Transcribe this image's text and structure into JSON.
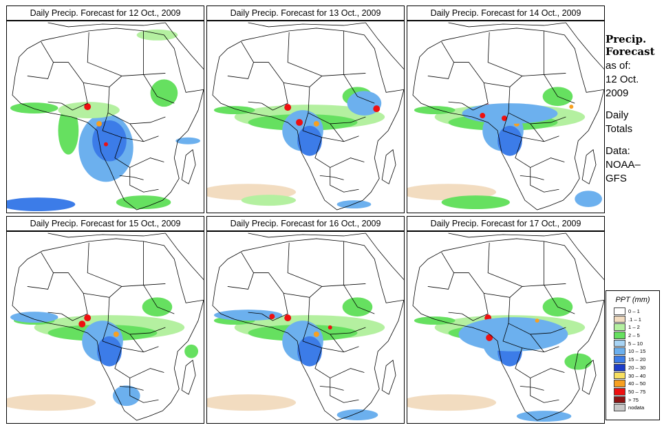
{
  "panels": [
    {
      "title": "Daily Precip. Forecast for  12 Oct., 2009"
    },
    {
      "title": "Daily Precip. Forecast for  13 Oct., 2009"
    },
    {
      "title": "Daily Precip. Forecast for  14 Oct., 2009"
    },
    {
      "title": "Daily Precip. Forecast for  15 Oct., 2009"
    },
    {
      "title": "Daily Precip. Forecast for  16 Oct., 2009"
    },
    {
      "title": "Daily Precip. Forecast for  17 Oct., 2009"
    }
  ],
  "side": {
    "heading1": "Precip.",
    "heading2": "Forecast",
    "asof": "as of:",
    "date1": "12 Oct.",
    "date2": "2009",
    "daily1": "Daily",
    "daily2": "Totals",
    "data1": "Data:",
    "data2": "NOAA–",
    "data3": "GFS"
  },
  "legend": {
    "title": "PPT (mm)",
    "items": [
      {
        "label": "0 – 1",
        "color": "#ffffff"
      },
      {
        "label": ".1 – 1",
        "color": "#f2dcc0"
      },
      {
        "label": "1 – 2",
        "color": "#b4f0a0"
      },
      {
        "label": "2 – 5",
        "color": "#66e060"
      },
      {
        "label": "5 – 10",
        "color": "#a8d4f4"
      },
      {
        "label": "10 – 15",
        "color": "#6cb0ee"
      },
      {
        "label": "15 – 20",
        "color": "#3c7ce8"
      },
      {
        "label": "20 – 30",
        "color": "#1c3cc8"
      },
      {
        "label": "30 – 40",
        "color": "#f8e060"
      },
      {
        "label": "40 – 50",
        "color": "#f8a020"
      },
      {
        "label": "50 – 75",
        "color": "#ee1010"
      },
      {
        "label": "> 75",
        "color": "#8c1414"
      },
      {
        "label": "nodata",
        "color": "#c8c8c8"
      }
    ]
  }
}
